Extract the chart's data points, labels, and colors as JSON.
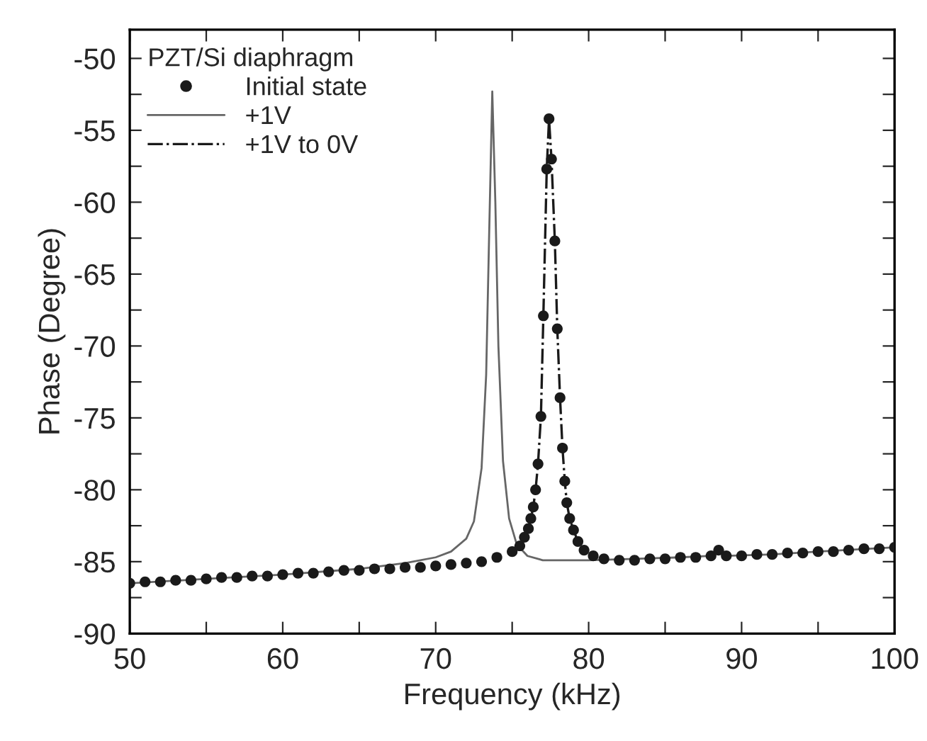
{
  "chart_data": {
    "type": "line",
    "xlabel": "Frequency (kHz)",
    "ylabel": "Phase (Degree)",
    "legend_title": "PZT/Si diaphragm",
    "legend": "top left",
    "grid": false,
    "xlim": [
      50,
      100
    ],
    "ylim": [
      -90,
      -48
    ],
    "xticks": [
      50,
      {
        "value": 55,
        "label": null
      },
      60,
      {
        "value": 65,
        "label": null
      },
      70,
      {
        "value": 75,
        "label": null
      },
      80,
      {
        "value": 85,
        "label": null
      },
      90,
      {
        "value": 95,
        "label": null
      },
      100
    ],
    "yticks": [
      -90,
      {
        "value": -87.5,
        "label": null
      },
      -85,
      {
        "value": -82.5,
        "label": null
      },
      -80,
      {
        "value": -77.5,
        "label": null
      },
      -75,
      {
        "value": -72.5,
        "label": null
      },
      -70,
      {
        "value": -67.5,
        "label": null
      },
      -65,
      {
        "value": -62.5,
        "label": null
      },
      -60,
      {
        "value": -57.5,
        "label": null
      },
      -55,
      {
        "value": -52.5,
        "label": null
      },
      -50
    ],
    "series": [
      {
        "name": "Initial state",
        "type": "scatter",
        "marker": "circle",
        "color": "#1a1a1a",
        "x": [
          50,
          51,
          52,
          53,
          54,
          55,
          56,
          57,
          58,
          59,
          60,
          61,
          62,
          63,
          64,
          65,
          66,
          67,
          68,
          69,
          70,
          71,
          72,
          73,
          74,
          75,
          75.5,
          75.8,
          76.06,
          76.22,
          76.38,
          76.53,
          76.69,
          76.88,
          77.04,
          77.26,
          77.41,
          77.57,
          77.79,
          77.95,
          78.13,
          78.29,
          78.44,
          78.57,
          78.76,
          79.01,
          79.3,
          79.7,
          80.3,
          81,
          82,
          83,
          84,
          85,
          86,
          87,
          88,
          88.5,
          89,
          90,
          91,
          92,
          93,
          94,
          95,
          96,
          97,
          98,
          99,
          100
        ],
        "values": [
          -86.5,
          -86.4,
          -86.4,
          -86.3,
          -86.3,
          -86.2,
          -86.1,
          -86.1,
          -86.0,
          -86.0,
          -85.9,
          -85.8,
          -85.8,
          -85.7,
          -85.6,
          -85.6,
          -85.5,
          -85.5,
          -85.4,
          -85.4,
          -85.3,
          -85.2,
          -85.1,
          -85.0,
          -84.7,
          -84.3,
          -83.9,
          -83.3,
          -82.7,
          -82.0,
          -81.2,
          -80.0,
          -78.2,
          -74.9,
          -67.9,
          -57.7,
          -54.2,
          -57.0,
          -62.7,
          -68.8,
          -73.6,
          -77.1,
          -79.4,
          -80.9,
          -82.0,
          -82.8,
          -83.6,
          -84.2,
          -84.6,
          -84.8,
          -84.9,
          -84.9,
          -84.8,
          -84.8,
          -84.7,
          -84.7,
          -84.6,
          -84.2,
          -84.6,
          -84.6,
          -84.5,
          -84.5,
          -84.4,
          -84.4,
          -84.3,
          -84.3,
          -84.2,
          -84.1,
          -84.1,
          -84.0
        ]
      },
      {
        "name": "+1V",
        "line_style": "solid",
        "color": "#666666",
        "x": [
          50,
          55,
          60,
          65,
          68,
          70,
          71,
          72,
          72.5,
          73,
          73.3,
          73.5,
          73.7,
          73.9,
          74.1,
          74.4,
          74.8,
          75.3,
          76,
          77,
          80,
          83,
          86,
          88,
          88.5,
          89,
          92,
          95,
          100
        ],
        "values": [
          -86.5,
          -86.2,
          -85.9,
          -85.5,
          -85.1,
          -84.7,
          -84.3,
          -83.4,
          -82.2,
          -78.5,
          -72,
          -62,
          -52.3,
          -60,
          -70,
          -78,
          -82,
          -83.8,
          -84.6,
          -84.9,
          -84.9,
          -84.8,
          -84.7,
          -84.6,
          -84.2,
          -84.6,
          -84.5,
          -84.3,
          -84.0
        ]
      },
      {
        "name": "+1V to 0V",
        "type": "line",
        "line_style": "dashdot",
        "color": "#1a1a1a",
        "x": [
          75.8,
          76.06,
          76.22,
          76.38,
          76.53,
          76.69,
          76.88,
          77.04,
          77.26,
          77.41,
          77.57,
          77.79,
          77.95,
          78.13,
          78.29,
          78.44,
          78.57,
          78.76,
          79.01,
          79.3
        ],
        "values": [
          -83.3,
          -82.7,
          -82.0,
          -81.2,
          -80.0,
          -78.2,
          -74.9,
          -67.9,
          -57.7,
          -54.2,
          -57.0,
          -62.7,
          -68.8,
          -73.6,
          -77.1,
          -79.4,
          -80.9,
          -82.0,
          -82.8,
          -83.6
        ]
      }
    ]
  }
}
